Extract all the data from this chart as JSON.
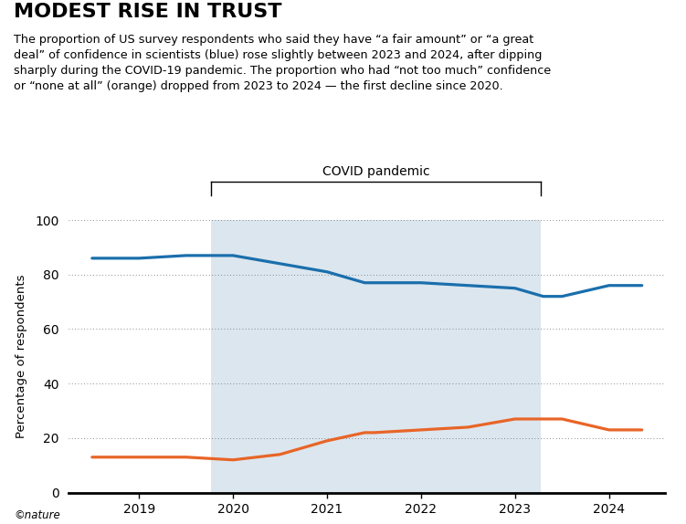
{
  "title": "MODEST RISE IN TRUST",
  "subtitle_lines": [
    "The proportion of US survey respondents who said they have “a fair amount” or “a great",
    "deal” of confidence in scientists (blue) rose slightly between 2023 and 2024, after dipping",
    "sharply during the COVID-19 pandemic. The proportion who had “not too much” confidence",
    "or “none at all” (orange) dropped from 2023 to 2024 — the first decline since 2020."
  ],
  "blue_x": [
    2018.5,
    2019.0,
    2019.5,
    2020.0,
    2020.5,
    2021.0,
    2021.4,
    2021.5,
    2022.0,
    2022.5,
    2023.0,
    2023.3,
    2023.5,
    2024.0,
    2024.35
  ],
  "blue_y": [
    86,
    86,
    87,
    87,
    84,
    81,
    77,
    77,
    77,
    76,
    75,
    72,
    72,
    76,
    76
  ],
  "orange_x": [
    2018.5,
    2019.0,
    2019.5,
    2020.0,
    2020.5,
    2021.0,
    2021.4,
    2021.5,
    2022.0,
    2022.5,
    2023.0,
    2023.3,
    2023.5,
    2024.0,
    2024.35
  ],
  "orange_y": [
    13,
    13,
    13,
    12,
    14,
    19,
    22,
    22,
    23,
    24,
    27,
    27,
    27,
    23,
    23
  ],
  "blue_color": "#1a6fac",
  "orange_color": "#e86527",
  "covid_shade_color": "#dce6ef",
  "covid_start": 2019.77,
  "covid_end": 2023.27,
  "covid_label": "COVID pandemic",
  "ylabel": "Percentage of respondents",
  "ylim": [
    0,
    100
  ],
  "yticks": [
    0,
    20,
    40,
    60,
    80,
    100
  ],
  "xlim": [
    2018.25,
    2024.6
  ],
  "xtick_positions": [
    2019.0,
    2020.0,
    2021.0,
    2022.0,
    2023.0,
    2024.0
  ],
  "xtick_labels": [
    "2019",
    "2020",
    "2021",
    "2022",
    "2023",
    "2024"
  ],
  "background_color": "#ffffff",
  "nature_credit": "©nature",
  "line_width": 2.3,
  "grid_color": "#666666",
  "title_fontsize": 16,
  "subtitle_fontsize": 9.2,
  "axis_label_fontsize": 9.5,
  "tick_fontsize": 10
}
